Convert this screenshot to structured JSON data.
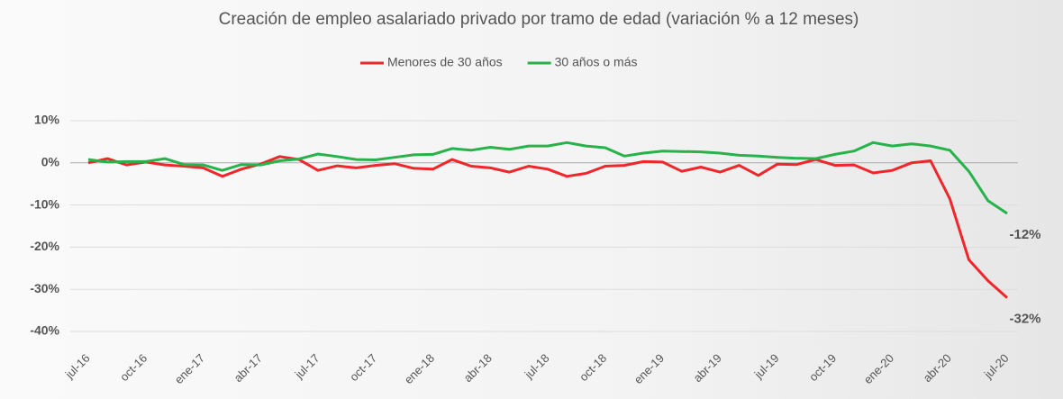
{
  "chart_data": {
    "type": "line",
    "title": "Creación de empleo asalariado privado por tramo de edad (variación % a 12 meses)",
    "categories": [
      "jul-16",
      null,
      null,
      "oct-16",
      null,
      null,
      "ene-17",
      null,
      null,
      "abr-17",
      null,
      null,
      "jul-17",
      null,
      null,
      "oct-17",
      null,
      null,
      "ene-18",
      null,
      null,
      "abr-18",
      null,
      null,
      "jul-18",
      null,
      null,
      "oct-18",
      null,
      null,
      "ene-19",
      null,
      null,
      "abr-19",
      null,
      null,
      "jul-19",
      null,
      null,
      "oct-19",
      null,
      null,
      "ene-20",
      null,
      null,
      "abr-20",
      null,
      null,
      "jul-20"
    ],
    "series": [
      {
        "name": "Menores de 30 años",
        "color": "#f0262b",
        "values": [
          0,
          1,
          -0.5,
          0.2,
          -0.5,
          -0.8,
          -1.2,
          -3.2,
          -1.5,
          -0.3,
          1.5,
          0.8,
          -1.8,
          -0.7,
          -1.2,
          -0.6,
          -0.2,
          -1.3,
          -1.5,
          0.8,
          -0.8,
          -1.2,
          -2.2,
          -0.8,
          -1.5,
          -3.2,
          -2.5,
          -0.8,
          -0.6,
          0.3,
          0.2,
          -2,
          -1,
          -2.2,
          -0.6,
          -3,
          -0.3,
          -0.4,
          0.8,
          -0.6,
          -0.5,
          -2.4,
          -1.8,
          0,
          0.5,
          -8.5,
          -23,
          -28,
          -32
        ],
        "value_labels": [
          null,
          null,
          null,
          null,
          null,
          null,
          null,
          null,
          null,
          null,
          null,
          null,
          null,
          null,
          null,
          null,
          null,
          null,
          null,
          null,
          null,
          null,
          null,
          null,
          null,
          null,
          null,
          null,
          null,
          null,
          null,
          null,
          null,
          null,
          null,
          null,
          null,
          null,
          null,
          null,
          null,
          null,
          null,
          null,
          null,
          null,
          null,
          null,
          "-32%"
        ]
      },
      {
        "name": "30 años o más",
        "color": "#27b24a",
        "values": [
          0.8,
          0.2,
          0.3,
          0.3,
          1,
          -0.4,
          -0.5,
          -1.8,
          -0.4,
          -0.5,
          0.5,
          0.9,
          2.1,
          1.5,
          0.8,
          0.7,
          1.3,
          1.9,
          2,
          3.4,
          3,
          3.7,
          3.2,
          4,
          4,
          4.8,
          4,
          3.6,
          1.6,
          2.3,
          2.8,
          2.7,
          2.6,
          2.3,
          1.8,
          1.6,
          1.3,
          1.1,
          1,
          2,
          2.8,
          4.8,
          4,
          4.5,
          4,
          3,
          -2,
          -9,
          -12
        ],
        "value_labels": [
          null,
          null,
          null,
          null,
          null,
          null,
          null,
          null,
          null,
          null,
          null,
          null,
          null,
          null,
          null,
          null,
          null,
          null,
          null,
          null,
          null,
          null,
          null,
          null,
          null,
          null,
          null,
          null,
          null,
          null,
          null,
          null,
          null,
          null,
          null,
          null,
          null,
          null,
          null,
          null,
          null,
          null,
          null,
          null,
          null,
          null,
          null,
          null,
          "-12%"
        ]
      }
    ],
    "ylim": [
      -40,
      15
    ],
    "yticks": [
      {
        "value": 10,
        "label": "10%"
      },
      {
        "value": 0,
        "label": "0%"
      },
      {
        "value": -10,
        "label": "-10%"
      },
      {
        "value": -20,
        "label": "-20%"
      },
      {
        "value": -30,
        "label": "-30%"
      },
      {
        "value": -40,
        "label": "-40%"
      }
    ],
    "grid": true,
    "legend": "top"
  }
}
